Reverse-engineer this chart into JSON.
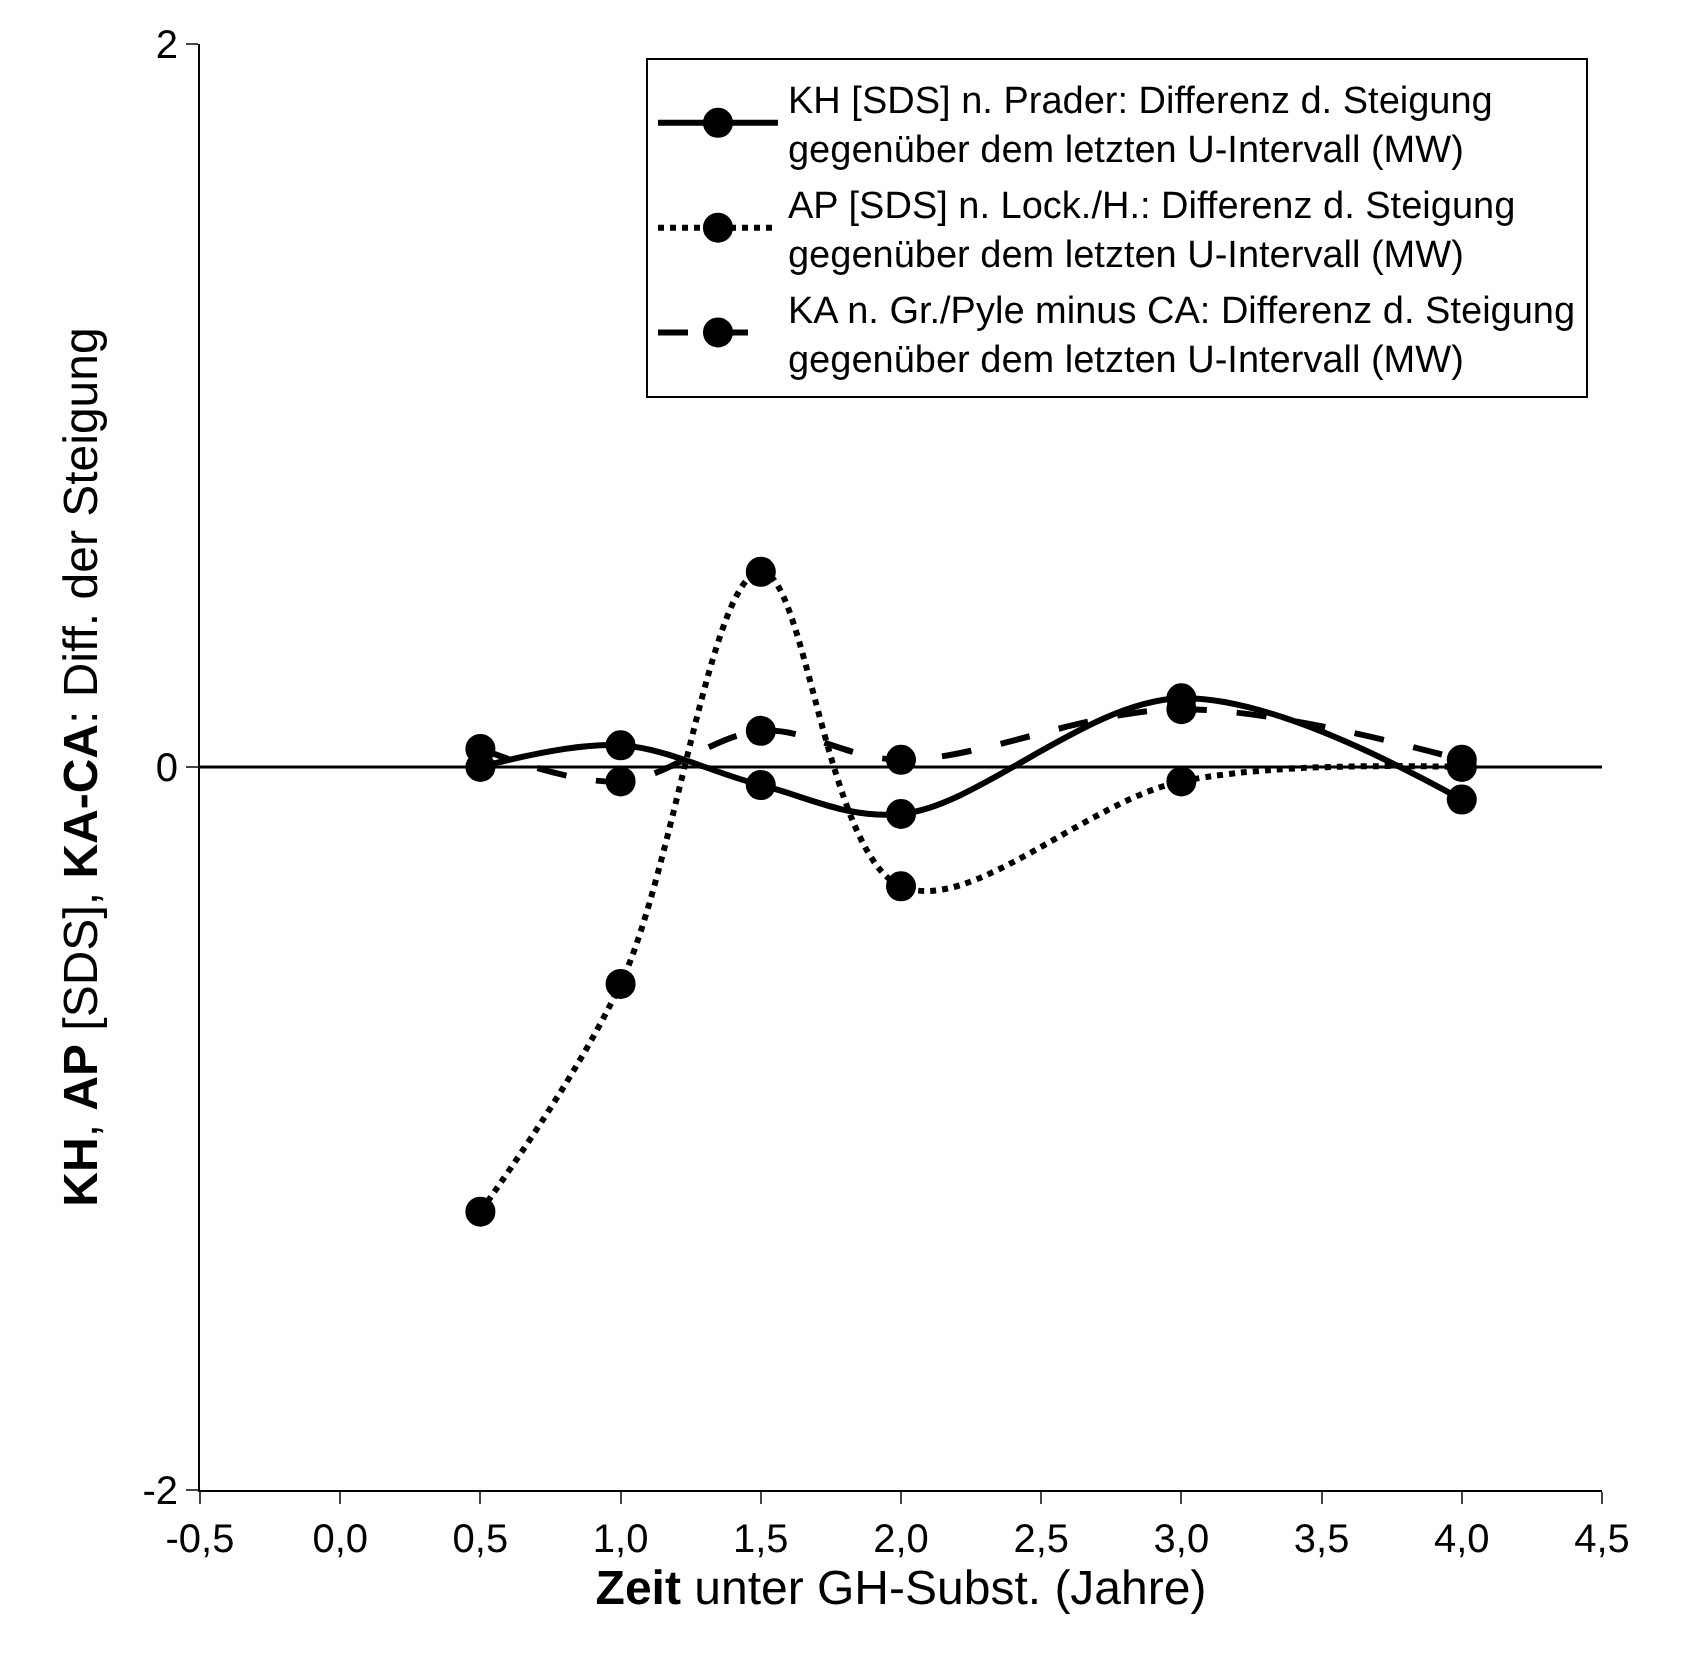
{
  "chart_data": {
    "type": "line",
    "xlabel": "**Zeit** unter GH-Subst. (Jahre)",
    "ylabel": "**KH**, **AP** [SDS], **KA-CA**: Diff. der Steigung",
    "x": [
      0.5,
      1.0,
      1.5,
      2.0,
      3.0,
      4.0
    ],
    "series": [
      {
        "name": "KH [SDS] n. Prader: Differenz d. Steigung\ngegenüber dem letzten U-Intervall (MW)",
        "color": "#000000",
        "line_style": "solid",
        "values": [
          0.0,
          0.06,
          -0.05,
          -0.13,
          0.19,
          -0.09
        ]
      },
      {
        "name": "AP [SDS] n. Lock./H.: Differenz d. Steigung\ngegenüber dem letzten U-Intervall (MW)",
        "color": "#000000",
        "line_style": "dotted",
        "values": [
          -1.23,
          -0.6,
          0.54,
          -0.33,
          -0.04,
          0.0
        ]
      },
      {
        "name": "KA n. Gr./Pyle minus CA: Differenz d. Steigung\ngegenüber dem letzten U-Intervall (MW)",
        "color": "#000000",
        "line_style": "dashed",
        "values": [
          0.05,
          -0.04,
          0.1,
          0.02,
          0.16,
          0.02
        ]
      }
    ],
    "xlim": [
      -0.5,
      4.5
    ],
    "xticks": [
      {
        "value": -0.5,
        "label": "-0,5"
      },
      {
        "value": 0,
        "label": "0,0"
      },
      {
        "value": 0.5,
        "label": "0,5"
      },
      {
        "value": 1,
        "label": "1,0"
      },
      {
        "value": 1.5,
        "label": "1,5"
      },
      {
        "value": 2,
        "label": "2,0"
      },
      {
        "value": 2.5,
        "label": "2,5"
      },
      {
        "value": 3,
        "label": "3,0"
      },
      {
        "value": 3.5,
        "label": "3,5"
      },
      {
        "value": 4,
        "label": "4,0"
      },
      {
        "value": 4.5,
        "label": "4,5"
      }
    ],
    "ylim": [
      -2,
      2
    ],
    "yticks": [
      -2,
      0,
      2
    ],
    "ref_lines": [
      {
        "axis": "y",
        "value": 0,
        "color": "#000000",
        "line_style": "solid"
      }
    ],
    "marker": "circle",
    "legend": "top right"
  }
}
